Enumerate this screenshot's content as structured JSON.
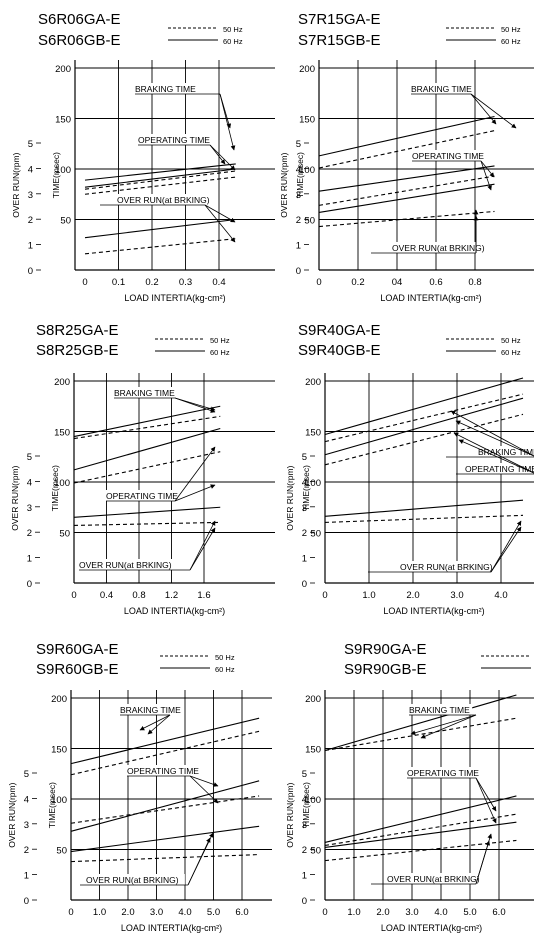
{
  "legend": {
    "dashed": "50 Hz",
    "solid": "60 Hz"
  },
  "axes": {
    "y_outer_label": "OVER RUN(rpm)",
    "y_inner_label": "TIME(msec)",
    "x_label": "LOAD INTERTIA(kg-cm²)"
  },
  "chart_data": [
    {
      "type": "line",
      "models": [
        "S6R06GA-E",
        "S6R06GB-E"
      ],
      "x_ticks": [
        "0",
        "0.1",
        "0.2",
        "0.3",
        "0.4"
      ],
      "x": [
        0,
        0.45
      ],
      "time_ticks": [
        "50",
        "100",
        "150",
        "200"
      ],
      "overrun_ticks": [
        "0",
        "1",
        "2",
        "3",
        "4",
        "5"
      ],
      "ylim": [
        0,
        200
      ],
      "annotations": [
        "BRAKING TIME",
        "OPERATING TIME",
        "OVER RUN(at BRKING)"
      ],
      "series": [
        {
          "group": "BRAKING TIME",
          "freq": "60 Hz",
          "values": [
            89,
            105
          ]
        },
        {
          "group": "BRAKING TIME",
          "freq": "50 Hz",
          "values": [
            80,
            98
          ]
        },
        {
          "group": "OPERATING TIME",
          "freq": "60 Hz",
          "values": [
            82,
            100
          ]
        },
        {
          "group": "OPERATING TIME",
          "freq": "50 Hz",
          "values": [
            75,
            92
          ]
        },
        {
          "group": "OVER RUN(at BRKING)",
          "freq": "60 Hz",
          "values": [
            32,
            50
          ]
        },
        {
          "group": "OVER RUN(at BRKING)",
          "freq": "50 Hz",
          "values": [
            16,
            31
          ]
        }
      ]
    },
    {
      "type": "line",
      "models": [
        "S7R15GA-E",
        "S7R15GB-E"
      ],
      "x_ticks": [
        "0",
        "0.2",
        "04",
        "0.6",
        "0.8"
      ],
      "x": [
        0,
        0.9
      ],
      "time_ticks": [
        "50",
        "100",
        "150",
        "200"
      ],
      "overrun_ticks": [
        "0",
        "1",
        "2",
        "3",
        "4",
        "5"
      ],
      "ylim": [
        0,
        200
      ],
      "annotations": [
        "BRAKING TIME",
        "OPERATING TIME",
        "OVER RUN(at BRKING)"
      ],
      "series": [
        {
          "group": "BRAKING TIME",
          "freq": "60 Hz",
          "values": [
            113,
            152
          ]
        },
        {
          "group": "BRAKING TIME",
          "freq": "50 Hz",
          "values": [
            101,
            138
          ]
        },
        {
          "group": "OPERATING TIME",
          "freq": "60 Hz",
          "values": [
            78,
            103
          ]
        },
        {
          "group": "OPERATING TIME",
          "freq": "50 Hz",
          "values": [
            64,
            93
          ]
        },
        {
          "group": "OVER RUN(at BRKING)",
          "freq": "60 Hz",
          "values": [
            57,
            85
          ]
        },
        {
          "group": "OVER RUN(at BRKING)",
          "freq": "50 Hz",
          "values": [
            43,
            58
          ]
        }
      ]
    },
    {
      "type": "line",
      "models": [
        "S8R25GA-E",
        "S8R25GB-E"
      ],
      "x_ticks": [
        "0",
        "0.4",
        "0.8",
        "1.2",
        "1.6"
      ],
      "x": [
        0,
        1.8
      ],
      "time_ticks": [
        "50",
        "100",
        "150",
        "200"
      ],
      "overrun_ticks": [
        "0",
        "1",
        "2",
        "3",
        "4",
        "5"
      ],
      "ylim": [
        0,
        200
      ],
      "annotations": [
        "BRAKING TIME",
        "OPERATING TIME",
        "OVER RUN(at BRKING)"
      ],
      "series": [
        {
          "group": "BRAKING TIME",
          "freq": "60 Hz",
          "values": [
            145,
            175
          ]
        },
        {
          "group": "BRAKING TIME",
          "freq": "50 Hz",
          "values": [
            143,
            165
          ]
        },
        {
          "group": "OPERATING TIME",
          "freq": "60 Hz",
          "values": [
            112,
            153
          ]
        },
        {
          "group": "OPERATING TIME",
          "freq": "50 Hz",
          "values": [
            99,
            130
          ]
        },
        {
          "group": "OVER RUN(at BRKING)",
          "freq": "60 Hz",
          "values": [
            65,
            75
          ]
        },
        {
          "group": "OVER RUN(at BRKING)",
          "freq": "50 Hz",
          "values": [
            57,
            60
          ]
        }
      ]
    },
    {
      "type": "line",
      "models": [
        "S9R40GA-E",
        "S9R40GB-E"
      ],
      "x_ticks": [
        "0",
        "1.0",
        "2.0",
        "3.0",
        "4.0"
      ],
      "x": [
        0,
        4.5
      ],
      "time_ticks": [
        "50",
        "100",
        "150",
        "200"
      ],
      "overrun_ticks": [
        "0",
        "1",
        "2",
        "3",
        "4",
        "5"
      ],
      "ylim": [
        0,
        200
      ],
      "annotations": [
        "BRAKING TIME",
        "OPERATING TIME",
        "OVER RUN(at BRKING)"
      ],
      "series": [
        {
          "group": "BRAKING TIME",
          "freq": "60 Hz",
          "values": [
            147,
            203
          ]
        },
        {
          "group": "BRAKING TIME",
          "freq": "50 Hz",
          "values": [
            140,
            187
          ]
        },
        {
          "group": "OPERATING TIME",
          "freq": "60 Hz",
          "values": [
            127,
            183
          ]
        },
        {
          "group": "OPERATING TIME",
          "freq": "50 Hz",
          "values": [
            117,
            167
          ]
        },
        {
          "group": "OVER RUN(at BRKING)",
          "freq": "60 Hz",
          "values": [
            66,
            82
          ]
        },
        {
          "group": "OVER RUN(at BRKING)",
          "freq": "50 Hz",
          "values": [
            60,
            67
          ]
        }
      ]
    },
    {
      "type": "line",
      "models": [
        "S9R60GA-E",
        "S9R60GB-E"
      ],
      "x_ticks": [
        "0",
        "1.0",
        "2.0",
        "3.0",
        "4.0",
        "5.0",
        "6.0"
      ],
      "x": [
        0,
        6.6
      ],
      "time_ticks": [
        "50",
        "100",
        "150",
        "200"
      ],
      "overrun_ticks": [
        "0",
        "1",
        "2",
        "3",
        "4",
        "5"
      ],
      "ylim": [
        0,
        200
      ],
      "annotations": [
        "BRAKING TIME",
        "OPERATING TIME",
        "OVER RUN(at BRKING)"
      ],
      "series": [
        {
          "group": "BRAKING TIME",
          "freq": "60 Hz",
          "values": [
            135,
            180
          ]
        },
        {
          "group": "BRAKING TIME",
          "freq": "50 Hz",
          "values": [
            124,
            167
          ]
        },
        {
          "group": "OPERATING TIME",
          "freq": "60 Hz",
          "values": [
            68,
            118
          ]
        },
        {
          "group": "OPERATING TIME",
          "freq": "50 Hz",
          "values": [
            76,
            103
          ]
        },
        {
          "group": "OVER RUN(at BRKING)",
          "freq": "60 Hz",
          "values": [
            48,
            73
          ]
        },
        {
          "group": "OVER RUN(at BRKING)",
          "freq": "50 Hz",
          "values": [
            38,
            45
          ]
        }
      ]
    },
    {
      "type": "line",
      "models": [
        "S9R90GA-E",
        "S9R90GB-E"
      ],
      "x_ticks": [
        "0",
        "1.0",
        "2.0",
        "3.0",
        "4.0",
        "5.0",
        "6.0"
      ],
      "x": [
        0,
        6.6
      ],
      "time_ticks": [
        "50",
        "100",
        "150",
        "200"
      ],
      "overrun_ticks": [
        "0",
        "1",
        "2",
        "3",
        "4",
        "5"
      ],
      "ylim": [
        0,
        200
      ],
      "annotations": [
        "BRAKING TIME",
        "OPERATING TIME",
        "OVER RUN(at BRKING)"
      ],
      "series": [
        {
          "group": "BRAKING TIME",
          "freq": "60 Hz",
          "values": [
            148,
            203
          ]
        },
        {
          "group": "BRAKING TIME",
          "freq": "50 Hz",
          "values": [
            148,
            180
          ]
        },
        {
          "group": "OPERATING TIME",
          "freq": "60 Hz",
          "values": [
            57,
            103
          ]
        },
        {
          "group": "OPERATING TIME",
          "freq": "50 Hz",
          "values": [
            54,
            85
          ]
        },
        {
          "group": "OVER RUN(at BRKING)",
          "freq": "60 Hz",
          "values": [
            52,
            77
          ]
        },
        {
          "group": "OVER RUN(at BRKING)",
          "freq": "50 Hz",
          "values": [
            39,
            59
          ]
        }
      ]
    }
  ]
}
